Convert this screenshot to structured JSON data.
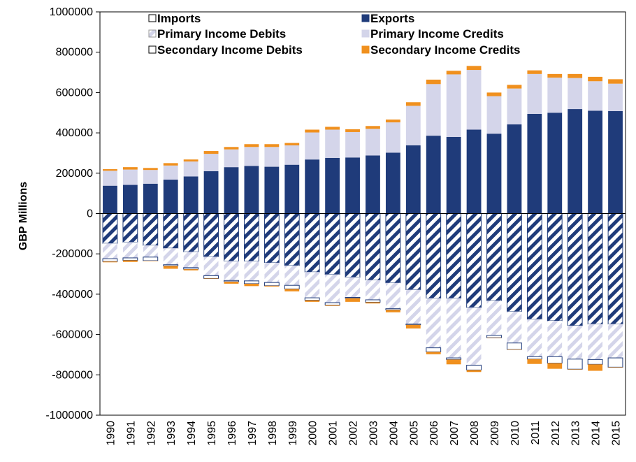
{
  "chart_data": {
    "type": "bar",
    "stacked": true,
    "ylabel": "GBP Millions",
    "ylim": [
      -1000000,
      1000000
    ],
    "yticks": [
      1000000,
      800000,
      600000,
      400000,
      200000,
      0,
      -200000,
      -400000,
      -600000,
      -800000,
      -1000000
    ],
    "categories": [
      "1990",
      "1991",
      "1992",
      "1993",
      "1994",
      "1995",
      "1996",
      "1997",
      "1998",
      "1999",
      "2000",
      "2001",
      "2002",
      "2003",
      "2004",
      "2005",
      "2006",
      "2007",
      "2008",
      "2009",
      "2010",
      "2011",
      "2012",
      "2013",
      "2014",
      "2015"
    ],
    "legend_position": "top",
    "series": [
      {
        "name": "Imports",
        "color": "#ffffff",
        "pattern": "hollow",
        "side": "negative",
        "values": [
          -148000,
          -142000,
          -158000,
          -172000,
          -190000,
          -214000,
          -236000,
          -236000,
          -244000,
          -258000,
          -290000,
          -302000,
          -316000,
          -330000,
          -344000,
          -378000,
          -420000,
          -420000,
          -466000,
          -432000,
          -486000,
          -524000,
          -532000,
          -556000,
          -548000,
          -548000
        ]
      },
      {
        "name": "Exports",
        "color": "#1f3b7a",
        "pattern": "solid",
        "side": "positive",
        "values": [
          138000,
          142000,
          148000,
          168000,
          184000,
          210000,
          230000,
          236000,
          232000,
          242000,
          268000,
          276000,
          278000,
          288000,
          302000,
          338000,
          386000,
          380000,
          416000,
          396000,
          442000,
          494000,
          500000,
          518000,
          510000,
          508000
        ]
      },
      {
        "name": "Primary Income Debits",
        "color": "#d4d5ea",
        "pattern": "hatched",
        "side": "negative",
        "values": [
          -76000,
          -78000,
          -58000,
          -82000,
          -78000,
          -94000,
          -96000,
          -98000,
          -98000,
          -98000,
          -128000,
          -140000,
          -100000,
          -98000,
          -128000,
          -170000,
          -246000,
          -296000,
          -286000,
          -172000,
          -156000,
          -186000,
          -178000,
          -166000,
          -176000,
          -168000
        ]
      },
      {
        "name": "Primary Income Credits",
        "color": "#d4d5ea",
        "pattern": "solid",
        "side": "positive",
        "values": [
          74000,
          76000,
          68000,
          70000,
          74000,
          86000,
          88000,
          94000,
          98000,
          96000,
          134000,
          140000,
          126000,
          132000,
          150000,
          196000,
          256000,
          310000,
          296000,
          186000,
          178000,
          198000,
          174000,
          154000,
          146000,
          136000
        ]
      },
      {
        "name": "Secondary Income Debits",
        "color": "#ffffff",
        "pattern": "hollow",
        "side": "negative",
        "values": [
          -14000,
          -12000,
          -18000,
          -6000,
          -8000,
          -14000,
          -6000,
          -14000,
          -16000,
          -18000,
          -12000,
          -12000,
          -4000,
          -12000,
          -6000,
          -4000,
          -20000,
          -8000,
          -24000,
          -12000,
          -32000,
          -12000,
          -32000,
          -50000,
          -24000,
          -46000
        ]
      },
      {
        "name": "Secondary Income Credits",
        "color": "#f0901e",
        "pattern": "solid",
        "side": "positive",
        "values": [
          8000,
          12000,
          10000,
          12000,
          10000,
          14000,
          12000,
          14000,
          14000,
          12000,
          14000,
          14000,
          14000,
          14000,
          14000,
          18000,
          22000,
          18000,
          20000,
          18000,
          18000,
          18000,
          18000,
          20000,
          22000,
          22000
        ]
      },
      {
        "name": "Secondary Income Credits (debit side)",
        "color": "#f0901e",
        "pattern": "solid",
        "side": "negative-extra",
        "values": [
          -4000,
          -8000,
          -2000,
          -14000,
          -6000,
          -2000,
          -10000,
          -12000,
          -4000,
          -12000,
          -8000,
          -4000,
          -18000,
          -6000,
          -12000,
          -18000,
          -12000,
          -24000,
          -10000,
          -2000,
          -2000,
          -24000,
          -28000,
          -2000,
          -32000,
          -2000
        ]
      }
    ],
    "legend": [
      {
        "label": "Imports",
        "swatch": "hollow"
      },
      {
        "label": "Exports",
        "swatch": "navy"
      },
      {
        "label": "Primary Income Debits",
        "swatch": "hatched"
      },
      {
        "label": "Primary Income Credits",
        "swatch": "lavender"
      },
      {
        "label": "Secondary Income Debits",
        "swatch": "hollow"
      },
      {
        "label": "Secondary Income Credits",
        "swatch": "orange"
      }
    ],
    "colors": {
      "exports": "#1f3b7a",
      "primary": "#d4d5ea",
      "secondary_credit": "#f0901e",
      "imports": "#ffffff",
      "stroke": "#1f3b7a"
    }
  }
}
